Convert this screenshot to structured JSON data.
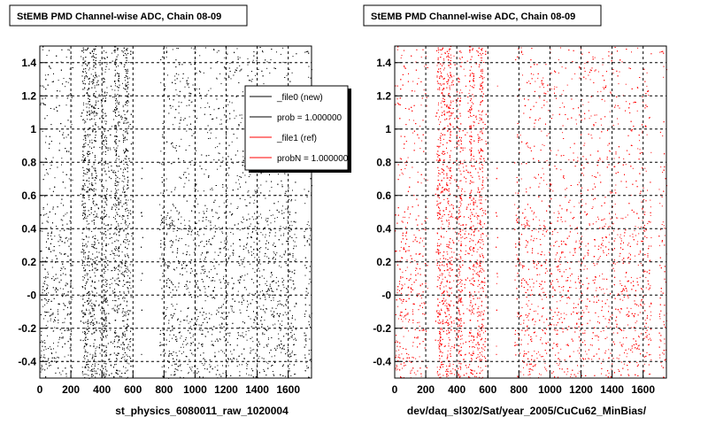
{
  "chart_data": [
    {
      "type": "scatter",
      "title": "StEMB PMD Channel-wise ADC, Chain 08-09",
      "xlabel": "st_physics_6080011_raw_1020004",
      "ylabel": "",
      "xlim": [
        0,
        1750
      ],
      "ylim": [
        -0.5,
        1.5
      ],
      "x_ticks": [
        "0",
        "200",
        "400",
        "600",
        "800",
        "1000",
        "1200",
        "1400",
        "1600"
      ],
      "y_ticks": [
        "-0.4",
        "-0.2",
        "-0",
        "0.2",
        "0.4",
        "0.6",
        "0.8",
        "1",
        "1.2",
        "1.4"
      ],
      "grid": true,
      "series": [
        {
          "name": "_file0 (new)",
          "color": "#000000"
        }
      ],
      "band_y_low": [
        -0.5,
        0.5
      ],
      "band_y_high": [
        0.5,
        1.5
      ],
      "dense_x_ranges": [
        [
          270,
          320
        ],
        [
          330,
          360
        ],
        [
          400,
          430
        ],
        [
          480,
          510
        ],
        [
          530,
          570
        ]
      ],
      "gap_x_ranges": [
        [
          210,
          260
        ],
        [
          590,
          650
        ],
        [
          660,
          770
        ],
        [
          1650,
          1700
        ]
      ],
      "legend": {
        "position": "top-right",
        "entries": [
          {
            "label": "_file0 (new)",
            "color": "#000000"
          },
          {
            "label": "prob = 1.000000",
            "color": "#000000"
          },
          {
            "label": "_file1 (ref)",
            "color": "#ff0000"
          },
          {
            "label": "probN = 1.000000",
            "color": "#ff0000"
          }
        ]
      }
    },
    {
      "type": "scatter",
      "title": "StEMB PMD Channel-wise ADC, Chain 08-09",
      "xlabel": "dev/daq_sl302/Sat/year_2005/CuCu62_MinBias/",
      "ylabel": "",
      "xlim": [
        0,
        1750
      ],
      "ylim": [
        -0.5,
        1.5
      ],
      "x_ticks": [
        "0",
        "200",
        "400",
        "600",
        "800",
        "1000",
        "1200",
        "1400",
        "1600"
      ],
      "y_ticks": [
        "-0.4",
        "-0.2",
        "-0",
        "0.2",
        "0.4",
        "0.6",
        "0.8",
        "1",
        "1.2",
        "1.4"
      ],
      "grid": true,
      "series": [
        {
          "name": "_file1 (ref)",
          "color": "#ff0000"
        }
      ],
      "band_y_low": [
        -0.5,
        0.5
      ],
      "band_y_high": [
        0.5,
        1.5
      ],
      "dense_x_ranges": [
        [
          270,
          320
        ],
        [
          330,
          360
        ],
        [
          400,
          430
        ],
        [
          480,
          510
        ],
        [
          530,
          570
        ]
      ],
      "gap_x_ranges": [
        [
          210,
          260
        ],
        [
          590,
          650
        ],
        [
          660,
          770
        ],
        [
          1650,
          1700
        ]
      ]
    }
  ]
}
